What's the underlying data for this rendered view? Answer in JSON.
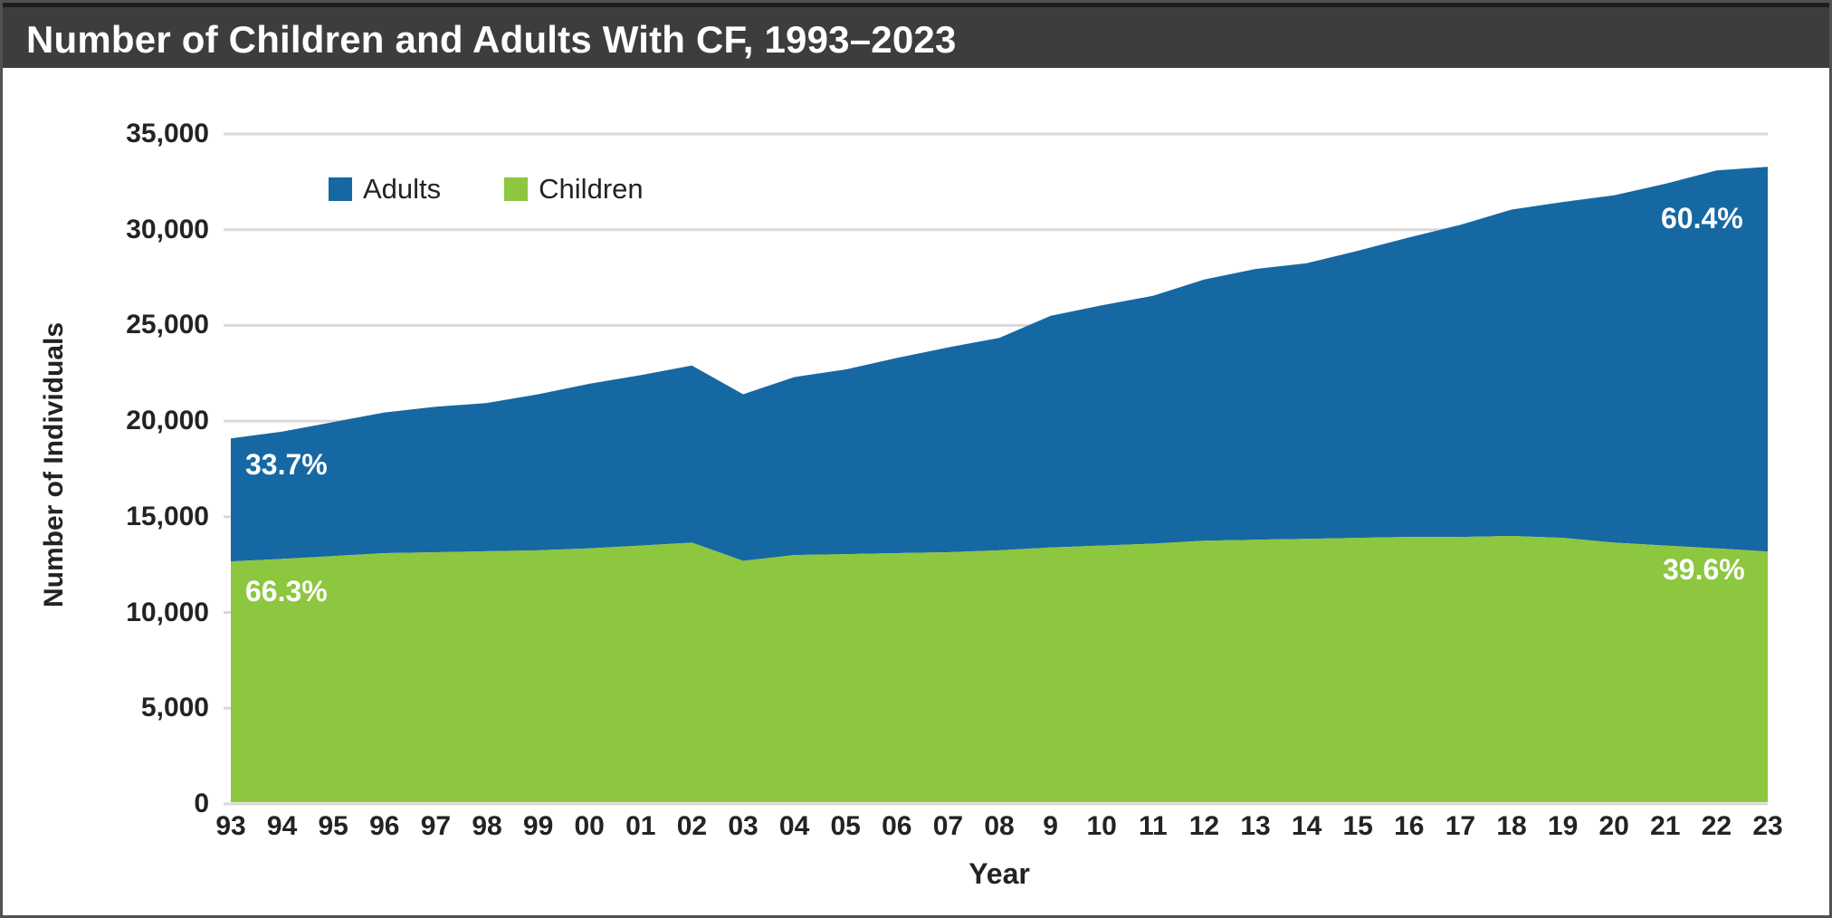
{
  "window": {
    "title": "Number of Children and Adults With CF, 1993–2023"
  },
  "colors": {
    "adults": "#1668A3",
    "children": "#8DC63F",
    "titlebar": "#3D3D40",
    "grid": "#D9D9D9",
    "axis_text": "#232323",
    "annotation_text": "#FFFFFF"
  },
  "legend": {
    "items": [
      {
        "label": "Adults",
        "color": "#1668A3"
      },
      {
        "label": "Children",
        "color": "#8DC63F"
      }
    ]
  },
  "axes": {
    "y_title": "Number of Individuals",
    "x_title": "Year"
  },
  "chart_data": {
    "type": "area",
    "stacked": true,
    "title": "Number of Children and Adults With CF, 1993–2023",
    "xlabel": "Year",
    "ylabel": "Number of Individuals",
    "grid": "horizontal",
    "legend_position": "top-left-inside",
    "ylim": [
      0,
      35000
    ],
    "ytick_step": 5000,
    "ytick_labels": [
      "0",
      "5,000",
      "10,000",
      "15,000",
      "20,000",
      "25,000",
      "30,000",
      "35,000"
    ],
    "x_tick_labels": [
      "93",
      "94",
      "95",
      "96",
      "97",
      "98",
      "99",
      "00",
      "01",
      "02",
      "03",
      "04",
      "05",
      "06",
      "07",
      "08",
      "9",
      "10",
      "11",
      "12",
      "13",
      "14",
      "15",
      "16",
      "17",
      "18",
      "19",
      "20",
      "21",
      "22",
      "23"
    ],
    "years": [
      1993,
      1994,
      1995,
      1996,
      1997,
      1998,
      1999,
      2000,
      2001,
      2002,
      2003,
      2004,
      2005,
      2006,
      2007,
      2008,
      2009,
      2010,
      2011,
      2012,
      2013,
      2014,
      2015,
      2016,
      2017,
      2018,
      2019,
      2020,
      2021,
      2022,
      2023
    ],
    "series": [
      {
        "name": "Children",
        "color": "#8DC63F",
        "values": [
          12670,
          12800,
          12950,
          13100,
          13150,
          13200,
          13250,
          13350,
          13500,
          13650,
          12700,
          13000,
          13050,
          13100,
          13150,
          13250,
          13400,
          13500,
          13600,
          13750,
          13800,
          13850,
          13900,
          13950,
          13950,
          14000,
          13900,
          13650,
          13500,
          13350,
          13182
        ]
      },
      {
        "name": "Adults",
        "color": "#1668A3",
        "values": [
          6430,
          6650,
          7000,
          7350,
          7600,
          7750,
          8150,
          8600,
          8900,
          9250,
          8700,
          9300,
          9650,
          10200,
          10700,
          11100,
          12100,
          12550,
          12950,
          13650,
          14150,
          14400,
          15000,
          15650,
          16300,
          17050,
          17550,
          18150,
          18900,
          19750,
          20106
        ]
      }
    ],
    "annotations": [
      {
        "text": "33.7%",
        "series": "Adults",
        "year": 1993
      },
      {
        "text": "66.3%",
        "series": "Children",
        "year": 1993
      },
      {
        "text": "60.4%",
        "series": "Adults",
        "year": 2023
      },
      {
        "text": "39.6%",
        "series": "Children",
        "year": 2023
      }
    ]
  }
}
